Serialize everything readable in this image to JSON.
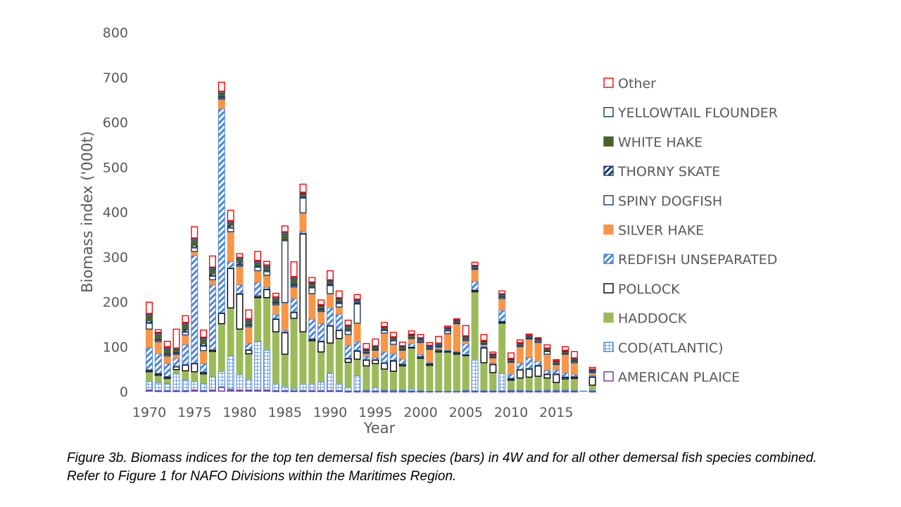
{
  "caption": "Figure 3b. Biomass indices for the top ten demersal fish species (bars) in 4W and for all other demersal fish species combined.  Refer to Figure 1 for NAFO Divisions within the Maritimes Region.",
  "chart_data": {
    "type": "bar",
    "stacked": true,
    "xlabel": "Year",
    "ylabel": "Biomass index ('000t)",
    "ylim": [
      0,
      800
    ],
    "yticks": [
      0,
      100,
      200,
      300,
      400,
      500,
      600,
      700,
      800
    ],
    "xtick_labels": [
      "1970",
      "1975",
      "1980",
      "1985",
      "1990",
      "1995",
      "2000",
      "2005",
      "2010",
      "2015"
    ],
    "grid": false,
    "legend_position": "right",
    "x": [
      1970,
      1971,
      1972,
      1973,
      1974,
      1975,
      1976,
      1977,
      1978,
      1979,
      1980,
      1981,
      1982,
      1983,
      1984,
      1985,
      1986,
      1987,
      1988,
      1989,
      1990,
      1991,
      1992,
      1993,
      1994,
      1995,
      1996,
      1997,
      1998,
      1999,
      2000,
      2001,
      2002,
      2003,
      2004,
      2005,
      2006,
      2007,
      2008,
      2009,
      2010,
      2011,
      2012,
      2013,
      2014,
      2015,
      2016,
      2017,
      2018,
      2019
    ],
    "series": [
      {
        "name": "AMERICAN PLAICE",
        "color": "#7030a0",
        "pattern": "solid-outline",
        "values": [
          3,
          2,
          2,
          2,
          2,
          3,
          2,
          3,
          10,
          5,
          3,
          3,
          3,
          3,
          2,
          2,
          2,
          2,
          2,
          2,
          2,
          2,
          1,
          1,
          1,
          1,
          1,
          1,
          1,
          1,
          1,
          1,
          1,
          1,
          1,
          1,
          1,
          1,
          1,
          1,
          1,
          1,
          1,
          1,
          1,
          1,
          1,
          1,
          0,
          1
        ]
      },
      {
        "name": "COD(ATLANTIC)",
        "color": "#4a86d8",
        "pattern": "grid",
        "values": [
          20,
          18,
          16,
          38,
          25,
          20,
          16,
          30,
          35,
          75,
          35,
          25,
          110,
          90,
          15,
          10,
          5,
          15,
          15,
          20,
          40,
          15,
          8,
          35,
          3,
          8,
          3,
          3,
          3,
          5,
          2,
          1,
          1,
          1,
          1,
          3,
          70,
          2,
          2,
          40,
          3,
          3,
          2,
          2,
          3,
          3,
          3,
          2,
          2,
          2
        ]
      },
      {
        "name": "HADDOCK",
        "color": "#9bbb59",
        "pattern": "solid",
        "values": [
          20,
          15,
          10,
          8,
          18,
          20,
          20,
          55,
          105,
          105,
          100,
          55,
          95,
          115,
          115,
          70,
          155,
          115,
          95,
          65,
          65,
          100,
          55,
          35,
          52,
          52,
          45,
          40,
          52,
          90,
          70,
          55,
          85,
          85,
          80,
          75,
          150,
          60,
          38,
          110,
          20,
          25,
          28,
          30,
          25,
          15,
          23,
          25,
          0,
          10
        ]
      },
      {
        "name": "POLLOCK",
        "color": "#000000",
        "pattern": "solid-outline",
        "values": [
          5,
          5,
          5,
          8,
          15,
          20,
          5,
          5,
          25,
          90,
          80,
          10,
          5,
          20,
          30,
          50,
          15,
          220,
          5,
          25,
          40,
          20,
          10,
          20,
          15,
          10,
          15,
          25,
          5,
          3,
          5,
          5,
          5,
          3,
          5,
          3,
          5,
          35,
          20,
          5,
          5,
          20,
          20,
          25,
          10,
          20,
          5,
          5,
          0,
          20
        ]
      },
      {
        "name": "REDFISH UNSEPARATED",
        "color": "#4a86d8",
        "pattern": "diag",
        "values": [
          50,
          45,
          30,
          18,
          45,
          240,
          20,
          145,
          455,
          15,
          20,
          15,
          30,
          5,
          10,
          5,
          30,
          5,
          45,
          40,
          40,
          35,
          30,
          20,
          8,
          5,
          25,
          15,
          12,
          8,
          5,
          3,
          3,
          3,
          3,
          25,
          20,
          3,
          3,
          25,
          10,
          15,
          25,
          10,
          8,
          10,
          10,
          5,
          0,
          3
        ]
      },
      {
        "name": "SILVER HAKE",
        "color": "#f79646",
        "pattern": "solid",
        "values": [
          40,
          25,
          15,
          8,
          20,
          8,
          27,
          10,
          20,
          65,
          40,
          35,
          25,
          25,
          20,
          60,
          25,
          40,
          55,
          25,
          30,
          15,
          22,
          40,
          5,
          15,
          40,
          20,
          18,
          10,
          25,
          28,
          3,
          35,
          60,
          5,
          25,
          3,
          10,
          25,
          25,
          35,
          40,
          40,
          35,
          10,
          40,
          25,
          0,
          5
        ]
      },
      {
        "name": "SPINY DOGFISH",
        "color": "#1f3864",
        "pattern": "solid-outline",
        "values": [
          15,
          5,
          5,
          3,
          8,
          10,
          12,
          10,
          5,
          10,
          5,
          5,
          10,
          10,
          5,
          140,
          5,
          35,
          15,
          5,
          20,
          10,
          10,
          45,
          3,
          3,
          8,
          10,
          3,
          3,
          5,
          3,
          3,
          8,
          3,
          5,
          3,
          3,
          3,
          5,
          3,
          3,
          3,
          5,
          8,
          3,
          3,
          5,
          0,
          3
        ]
      },
      {
        "name": "THORNY SKATE",
        "color": "#1f3864",
        "pattern": "diag",
        "values": [
          5,
          3,
          3,
          3,
          5,
          5,
          5,
          5,
          3,
          5,
          5,
          3,
          3,
          3,
          3,
          3,
          3,
          3,
          3,
          3,
          3,
          3,
          3,
          3,
          1,
          1,
          1,
          1,
          1,
          1,
          1,
          1,
          1,
          1,
          1,
          1,
          1,
          1,
          1,
          1,
          1,
          1,
          1,
          1,
          1,
          1,
          1,
          1,
          0,
          1
        ]
      },
      {
        "name": "WHITE HAKE",
        "color": "#4f6228",
        "pattern": "solid",
        "values": [
          10,
          8,
          8,
          5,
          10,
          10,
          8,
          8,
          5,
          5,
          5,
          5,
          5,
          5,
          5,
          10,
          10,
          5,
          5,
          5,
          5,
          5,
          5,
          3,
          3,
          3,
          3,
          3,
          3,
          3,
          2,
          2,
          2,
          2,
          2,
          2,
          2,
          2,
          2,
          2,
          2,
          2,
          2,
          2,
          2,
          2,
          2,
          2,
          0,
          2
        ]
      },
      {
        "name": "YELLOWTAIL FLOUNDER",
        "color": "#1f3864",
        "pattern": "solid-outline",
        "values": [
          5,
          5,
          5,
          3,
          5,
          5,
          5,
          5,
          5,
          5,
          5,
          5,
          5,
          5,
          5,
          5,
          5,
          3,
          3,
          3,
          3,
          3,
          3,
          3,
          3,
          3,
          3,
          3,
          3,
          3,
          3,
          3,
          3,
          3,
          3,
          3,
          3,
          3,
          3,
          3,
          3,
          3,
          3,
          3,
          3,
          3,
          3,
          3,
          0,
          2
        ]
      },
      {
        "name": "Other",
        "color": "#ff0000",
        "pattern": "solid-outline",
        "values": [
          27,
          8,
          14,
          44,
          17,
          27,
          18,
          27,
          22,
          25,
          10,
          22,
          22,
          10,
          10,
          15,
          35,
          20,
          12,
          12,
          22,
          17,
          13,
          12,
          14,
          17,
          11,
          12,
          10,
          9,
          9,
          8,
          17,
          5,
          4,
          25,
          9,
          15,
          6,
          8,
          14,
          8,
          4,
          2,
          9,
          4,
          10,
          16,
          0,
          6
        ]
      }
    ]
  }
}
